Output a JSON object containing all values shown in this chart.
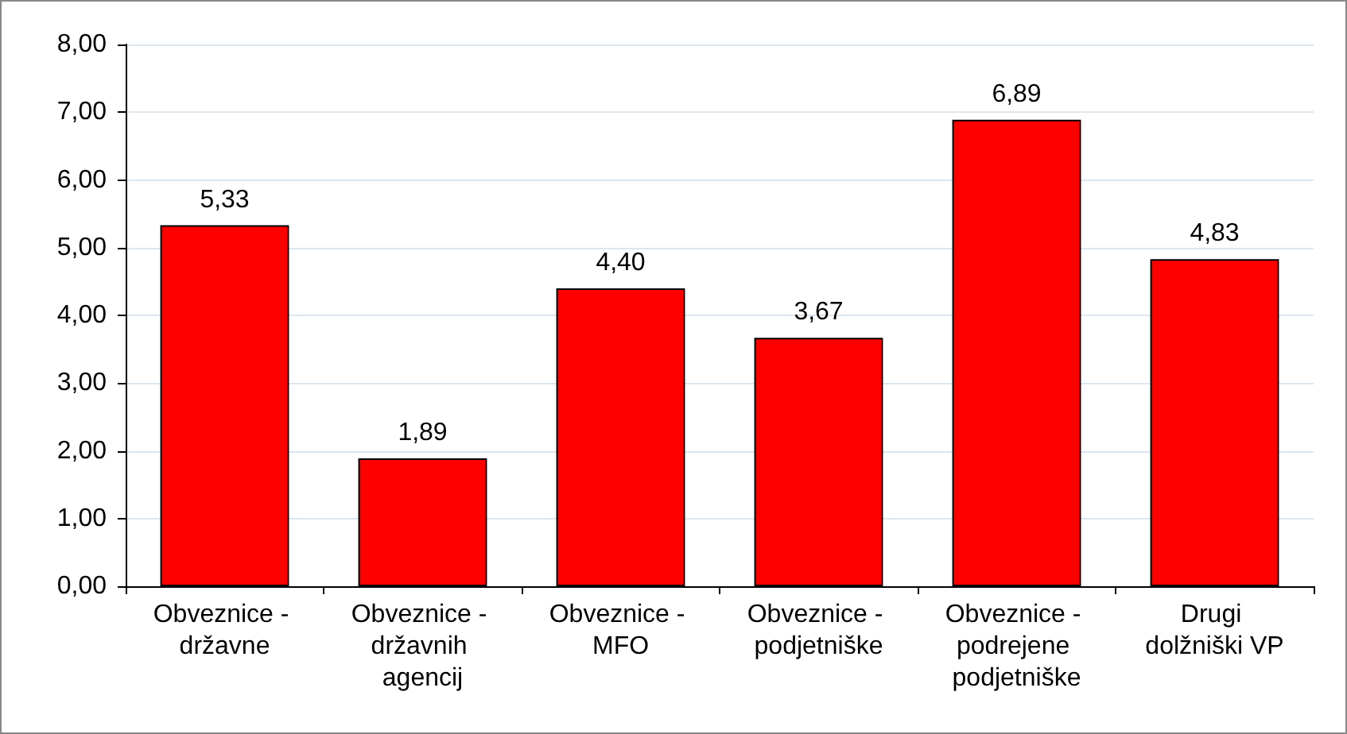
{
  "chart_data": {
    "type": "bar",
    "categories": [
      "Obveznice - državne",
      "Obveznice - državnih agencij",
      "Obveznice - MFO",
      "Obveznice - podjetniške",
      "Obveznice - podrejene podjetniške",
      "Drugi dolžniški VP"
    ],
    "values": [
      5.33,
      1.89,
      4.4,
      3.67,
      6.89,
      4.83
    ],
    "value_labels": [
      "5,33",
      "1,89",
      "4,40",
      "3,67",
      "6,89",
      "4,83"
    ],
    "color": "#ff0000",
    "ylim": [
      0,
      8
    ],
    "yticks": [
      {
        "value": 0,
        "label": "0,00"
      },
      {
        "value": 1,
        "label": "1,00"
      },
      {
        "value": 2,
        "label": "2,00"
      },
      {
        "value": 3,
        "label": "3,00"
      },
      {
        "value": 4,
        "label": "4,00"
      },
      {
        "value": 5,
        "label": "5,00"
      },
      {
        "value": 6,
        "label": "6,00"
      },
      {
        "value": 7,
        "label": "7,00"
      },
      {
        "value": 8,
        "label": "8,00"
      }
    ],
    "grid": "y"
  }
}
